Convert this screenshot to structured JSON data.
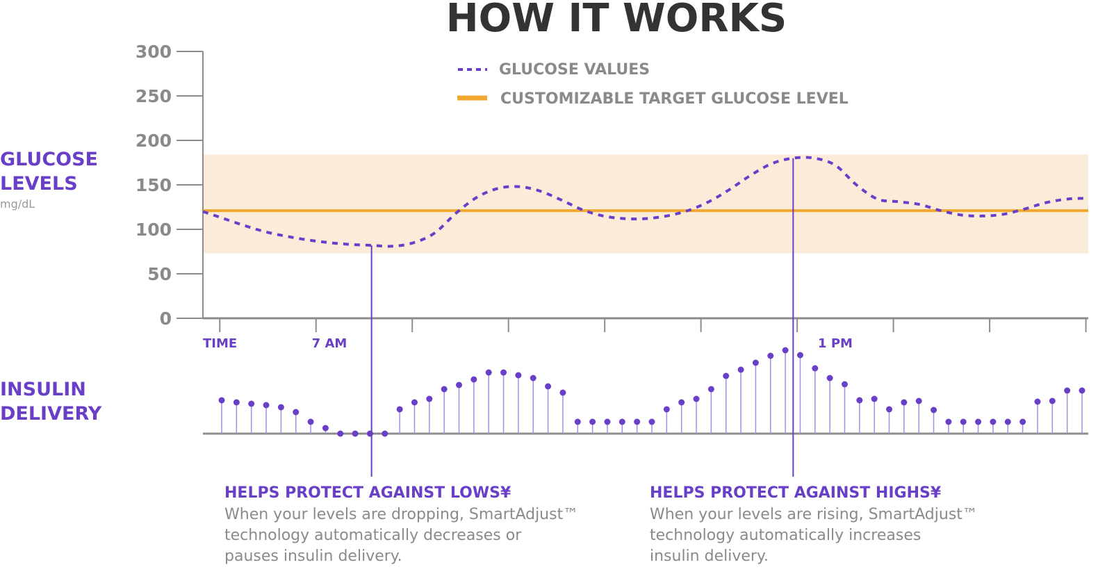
{
  "chart_data": {
    "type": "line",
    "title": "HOW IT WORKS",
    "ylabel": [
      "GLUCOSE",
      "LEVELS"
    ],
    "yunit": "mg/dL",
    "ylim": [
      0,
      300
    ],
    "yticks": [
      "300",
      "250",
      "200",
      "150",
      "100",
      "50",
      "0"
    ],
    "xlabel": "TIME",
    "x_tick_labels": [
      {
        "label": "7 AM",
        "x": 6.0
      },
      {
        "label": "1 PM",
        "x": 12.0
      }
    ],
    "xlim": [
      4.5,
      15.0
    ],
    "target_range": [
      73,
      184
    ],
    "target_level": 121,
    "series": [
      {
        "name": "GLUCOSE VALUES",
        "style": "dashed",
        "color": "#6a3fc8",
        "x": [
          4.5,
          4.75,
          5.0,
          5.25,
          5.5,
          5.75,
          6.0,
          6.25,
          6.5,
          6.75,
          7.0,
          7.25,
          7.5,
          7.75,
          8.0,
          8.25,
          8.5,
          8.75,
          9.0,
          9.25,
          9.5,
          9.75,
          10.0,
          10.25,
          10.5,
          10.75,
          11.0,
          11.25,
          11.5,
          11.75,
          12.0,
          12.25,
          12.5,
          12.75,
          13.0,
          13.25,
          13.5,
          13.75,
          14.0,
          14.25,
          14.5,
          14.75,
          15.0
        ],
        "y": [
          120,
          112,
          104,
          97,
          92,
          88,
          85,
          83,
          82,
          81,
          85,
          96,
          118,
          136,
          146,
          148,
          143,
          133,
          122,
          115,
          112,
          112,
          115,
          121,
          131,
          145,
          161,
          174,
          180,
          180,
          172,
          150,
          134,
          131,
          128,
          121,
          116,
          115,
          117,
          123,
          130,
          134,
          135
        ]
      },
      {
        "name": "CUSTOMIZABLE TARGET GLUCOSE LEVEL",
        "style": "solid",
        "color": "#f0a830",
        "x": [
          4.5,
          15.0
        ],
        "y": [
          121,
          121
        ]
      }
    ],
    "insulin_delivery": {
      "label": [
        "INSULIN",
        "DELIVERY"
      ],
      "values": [
        48,
        45,
        43,
        41,
        38,
        31,
        17,
        8,
        0,
        0,
        0,
        0,
        35,
        45,
        50,
        64,
        70,
        78,
        88,
        88,
        84,
        80,
        68,
        59,
        17,
        17,
        17,
        17,
        17,
        17,
        35,
        45,
        50,
        64,
        83,
        92,
        102,
        112,
        120,
        113,
        94,
        80,
        71,
        48,
        50,
        35,
        45,
        47,
        34,
        17,
        17,
        17,
        17,
        17,
        17,
        46,
        47,
        62,
        62
      ]
    },
    "annotations": [
      {
        "x": 6.5,
        "title": "HELPS PROTECT AGAINST LOWS¥",
        "lines": [
          "When your levels are dropping, SmartAdjust™",
          "technology automatically decreases or",
          "pauses insulin delivery."
        ]
      },
      {
        "x": 11.5,
        "title": "HELPS PROTECT AGAINST HIGHS¥",
        "lines": [
          "When your levels are rising, SmartAdjust™",
          "technology automatically increases",
          "insulin delivery."
        ]
      }
    ],
    "legend_position": "top",
    "colors": {
      "purple": "#6a3fc8",
      "orange": "#f0a830",
      "band": "#fbebd9",
      "axis": "#8c8c8c",
      "title": "#333333"
    }
  }
}
